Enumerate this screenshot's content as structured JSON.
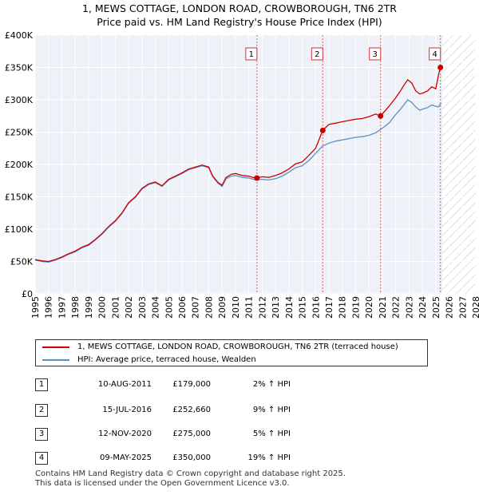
{
  "chart_data": {
    "type": "line",
    "title": "1, MEWS COTTAGE, LONDON ROAD, CROWBOROUGH, TN6 2TR",
    "subtitle": "Price paid vs. HM Land Registry's House Price Index (HPI)",
    "xlabel": "",
    "ylabel": "",
    "xlim": [
      1995,
      2028
    ],
    "ylim": [
      0,
      400000
    ],
    "x_ticks": [
      "1995",
      "1996",
      "1997",
      "1998",
      "1999",
      "2000",
      "2001",
      "2002",
      "2003",
      "2004",
      "2005",
      "2006",
      "2007",
      "2008",
      "2009",
      "2010",
      "2011",
      "2012",
      "2013",
      "2014",
      "2015",
      "2016",
      "2017",
      "2018",
      "2019",
      "2020",
      "2021",
      "2022",
      "2023",
      "2024",
      "2025",
      "2026",
      "2027",
      "2028"
    ],
    "y_ticks": [
      "£0",
      "£50K",
      "£100K",
      "£150K",
      "£200K",
      "£250K",
      "£300K",
      "£350K",
      "£400K"
    ],
    "projection_start": 2025.5,
    "series": [
      {
        "name": "1, MEWS COTTAGE, LONDON ROAD, CROWBOROUGH, TN6 2TR (terraced house)",
        "color": "#cc0000",
        "x": [
          1995.0,
          1995.5,
          1996.0,
          1996.5,
          1997.0,
          1997.5,
          1998.0,
          1998.5,
          1999.0,
          1999.5,
          2000.0,
          2000.5,
          2001.0,
          2001.5,
          2002.0,
          2002.5,
          2003.0,
          2003.5,
          2004.0,
          2004.5,
          2005.0,
          2005.5,
          2006.0,
          2006.5,
          2007.0,
          2007.5,
          2008.0,
          2008.3,
          2008.7,
          2009.0,
          2009.3,
          2009.7,
          2010.0,
          2010.5,
          2011.0,
          2011.3,
          2011.61,
          2012.0,
          2012.5,
          2013.0,
          2013.5,
          2014.0,
          2014.5,
          2015.0,
          2015.5,
          2016.0,
          2016.54,
          2016.8,
          2017.0,
          2017.5,
          2018.0,
          2018.5,
          2019.0,
          2019.5,
          2020.0,
          2020.5,
          2020.87,
          2021.2,
          2021.5,
          2022.0,
          2022.3,
          2022.6,
          2022.9,
          2023.2,
          2023.5,
          2023.8,
          2024.1,
          2024.4,
          2024.7,
          2025.0,
          2025.2,
          2025.35
        ],
        "values": [
          53000,
          51000,
          50000,
          53000,
          57000,
          62000,
          66000,
          72000,
          76000,
          84000,
          93000,
          104000,
          113000,
          125000,
          141000,
          150000,
          163000,
          170000,
          173000,
          167000,
          177000,
          182000,
          187000,
          193000,
          196000,
          199000,
          196000,
          182000,
          172000,
          168000,
          180000,
          185000,
          186000,
          183000,
          182000,
          180000,
          179000,
          181000,
          180000,
          183000,
          187000,
          193000,
          201000,
          204000,
          214000,
          225000,
          252660,
          258000,
          262000,
          264000,
          266000,
          268000,
          270000,
          271000,
          274000,
          278000,
          275000,
          283000,
          290000,
          303000,
          312000,
          322000,
          331000,
          326000,
          314000,
          309000,
          311000,
          314000,
          320000,
          317000,
          338000,
          350000
        ]
      },
      {
        "name": "HPI: Average price, terraced house, Wealden",
        "color": "#5b8fc7",
        "x": [
          1995.0,
          1995.5,
          1996.0,
          1996.5,
          1997.0,
          1997.5,
          1998.0,
          1998.5,
          1999.0,
          1999.5,
          2000.0,
          2000.5,
          2001.0,
          2001.5,
          2002.0,
          2002.5,
          2003.0,
          2003.5,
          2004.0,
          2004.5,
          2005.0,
          2005.5,
          2006.0,
          2006.5,
          2007.0,
          2007.5,
          2008.0,
          2008.3,
          2008.7,
          2009.0,
          2009.3,
          2009.7,
          2010.0,
          2010.5,
          2011.0,
          2011.5,
          2012.0,
          2012.5,
          2013.0,
          2013.5,
          2014.0,
          2014.5,
          2015.0,
          2015.5,
          2016.0,
          2016.5,
          2017.0,
          2017.5,
          2018.0,
          2018.5,
          2019.0,
          2019.5,
          2020.0,
          2020.5,
          2021.0,
          2021.5,
          2022.0,
          2022.3,
          2022.6,
          2022.9,
          2023.2,
          2023.5,
          2023.8,
          2024.1,
          2024.4,
          2024.7,
          2025.0,
          2025.2,
          2025.4
        ],
        "values": [
          52000,
          50000,
          49000,
          52000,
          56000,
          61000,
          65000,
          71000,
          75000,
          83000,
          92000,
          103000,
          112000,
          124000,
          140000,
          149000,
          162000,
          169000,
          172000,
          166000,
          176000,
          181000,
          186000,
          192000,
          195000,
          198000,
          195000,
          181000,
          171000,
          166000,
          178000,
          182000,
          183000,
          180000,
          179000,
          176000,
          177000,
          176000,
          178000,
          182000,
          188000,
          195000,
          198000,
          206000,
          217000,
          228000,
          233000,
          236000,
          238000,
          240000,
          242000,
          243000,
          245000,
          249000,
          256000,
          264000,
          277000,
          284000,
          292000,
          300000,
          296000,
          289000,
          284000,
          286000,
          288000,
          292000,
          290000,
          289000,
          295000
        ]
      }
    ],
    "annotations": [
      {
        "label": "1",
        "x": 2011.61,
        "y": 179000
      },
      {
        "label": "2",
        "x": 2016.54,
        "y": 252660
      },
      {
        "label": "3",
        "x": 2020.87,
        "y": 275000
      },
      {
        "label": "4",
        "x": 2025.35,
        "y": 350000
      }
    ]
  },
  "legend": {
    "series1_label": "1, MEWS COTTAGE, LONDON ROAD, CROWBOROUGH, TN6 2TR (terraced house)",
    "series2_label": "HPI: Average price, terraced house, Wealden",
    "series1_color": "#cc0000",
    "series2_color": "#5b8fc7"
  },
  "transactions": [
    {
      "num": "1",
      "date": "10-AUG-2011",
      "price": "£179,000",
      "hpi": "2% ↑ HPI"
    },
    {
      "num": "2",
      "date": "15-JUL-2016",
      "price": "£252,660",
      "hpi": "9% ↑ HPI"
    },
    {
      "num": "3",
      "date": "12-NOV-2020",
      "price": "£275,000",
      "hpi": "5% ↑ HPI"
    },
    {
      "num": "4",
      "date": "09-MAY-2025",
      "price": "£350,000",
      "hpi": "19% ↑ HPI"
    }
  ],
  "footer": {
    "line1": "Contains HM Land Registry data © Crown copyright and database right 2025.",
    "line2": "This data is licensed under the Open Government Licence v3.0."
  }
}
